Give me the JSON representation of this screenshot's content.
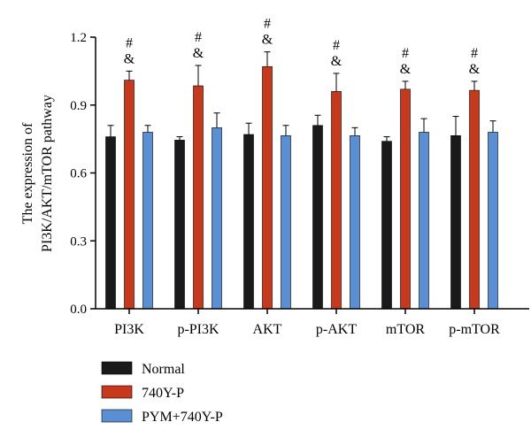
{
  "chart_data": {
    "type": "bar",
    "ylabel_lines": [
      "The expression of",
      "PI3K/AKT/mTOR pathway"
    ],
    "ylim": [
      0,
      1.2
    ],
    "yticks": [
      "0.0",
      "0.3",
      "0.6",
      "0.9",
      "1.2"
    ],
    "ytick_values": [
      0,
      0.3,
      0.6,
      0.9,
      1.2
    ],
    "categories": [
      "PI3K",
      "p-PI3K",
      "AKT",
      "p-AKT",
      "mTOR",
      "p-mTOR"
    ],
    "series": [
      {
        "name": "Normal",
        "color": "#1a1a1a",
        "values": [
          0.76,
          0.745,
          0.77,
          0.81,
          0.74,
          0.765
        ],
        "errors": [
          0.05,
          0.015,
          0.05,
          0.045,
          0.02,
          0.085
        ]
      },
      {
        "name": "740Y-P",
        "color": "#c8381c",
        "values": [
          1.01,
          0.985,
          1.07,
          0.96,
          0.97,
          0.965
        ],
        "errors": [
          0.04,
          0.09,
          0.065,
          0.08,
          0.035,
          0.04
        ]
      },
      {
        "name": "PYM+740Y-P",
        "color": "#5b8fd4",
        "values": [
          0.78,
          0.8,
          0.765,
          0.765,
          0.78,
          0.78
        ],
        "errors": [
          0.03,
          0.065,
          0.045,
          0.035,
          0.06,
          0.05
        ]
      }
    ],
    "annotations": [
      "#",
      "&"
    ],
    "legend_position": "bottom-left",
    "grid": false
  }
}
